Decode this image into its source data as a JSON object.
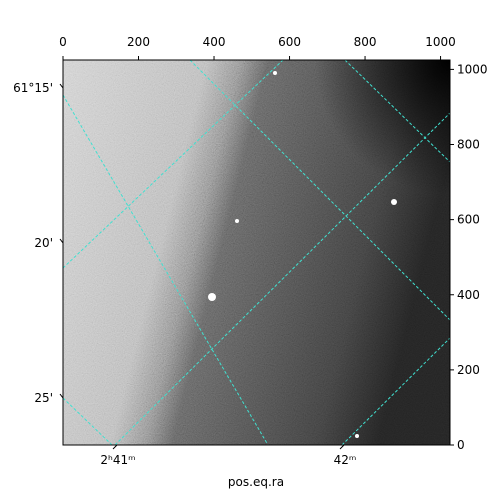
{
  "chart_data": {
    "type": "image",
    "xlabel": "pos.eq.ra",
    "xlim": [
      0,
      1025
    ],
    "xticks": [
      0,
      200,
      400,
      600,
      800,
      1000
    ],
    "ylim": [
      0,
      1025
    ],
    "yticks": [
      0,
      200,
      400,
      600,
      800,
      1000
    ],
    "ra_ticks": [
      "2ʰ41ᵐ",
      "42ᵐ"
    ],
    "dec_ticks": [
      "61°15'",
      "20'",
      "25'"
    ],
    "grid_color": "#40e0d0"
  }
}
